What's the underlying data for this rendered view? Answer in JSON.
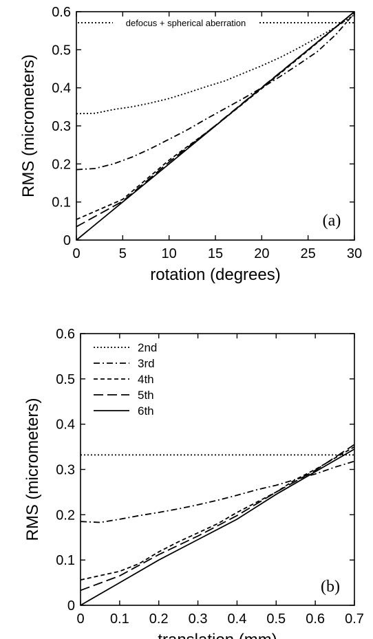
{
  "styles": {
    "2nd": "2,3",
    "3rd": "9,4,2,4",
    "4th": "6,4",
    "5th": "14,6",
    "6th": "",
    "defocus": "2,3"
  },
  "legend": [
    "2nd",
    "3rd",
    "4th",
    "5th",
    "6th"
  ],
  "chart_data": [
    {
      "type": "line",
      "panel_label": "(a)",
      "xlabel": "rotation (degrees)",
      "ylabel": "RMS (micrometers)",
      "xlim": [
        0,
        30
      ],
      "ylim": [
        0,
        0.6
      ],
      "xticks": [
        0,
        5,
        10,
        15,
        20,
        25,
        30
      ],
      "yticks": [
        0,
        0.1,
        0.2,
        0.3,
        0.4,
        0.5,
        0.6
      ],
      "xtick_labels": [
        "0",
        "5",
        "10",
        "15",
        "20",
        "25",
        "30"
      ],
      "ytick_labels": [
        "0",
        "0.1",
        "0.2",
        "0.3",
        "0.4",
        "0.5",
        "0.6"
      ],
      "series": [
        {
          "name": "2nd",
          "x": [
            0,
            2,
            4,
            6,
            8,
            10,
            12,
            14,
            16,
            18,
            20,
            22,
            24,
            26,
            28,
            30
          ],
          "y": [
            0.332,
            0.333,
            0.343,
            0.35,
            0.36,
            0.372,
            0.387,
            0.403,
            0.418,
            0.438,
            0.458,
            0.48,
            0.505,
            0.532,
            0.56,
            0.592
          ]
        },
        {
          "name": "3rd",
          "x": [
            0,
            2,
            4,
            6,
            8,
            10,
            12,
            14,
            16,
            18,
            20,
            22,
            24,
            26,
            28,
            30
          ],
          "y": [
            0.185,
            0.188,
            0.2,
            0.218,
            0.24,
            0.265,
            0.29,
            0.318,
            0.345,
            0.372,
            0.4,
            0.43,
            0.462,
            0.495,
            0.54,
            0.596
          ]
        },
        {
          "name": "4th",
          "x": [
            0,
            5,
            10,
            15,
            20,
            25,
            30
          ],
          "y": [
            0.054,
            0.107,
            0.21,
            0.3,
            0.398,
            0.498,
            0.6
          ]
        },
        {
          "name": "5th",
          "x": [
            0,
            5,
            10,
            15,
            20,
            25,
            30
          ],
          "y": [
            0.035,
            0.102,
            0.205,
            0.301,
            0.401,
            0.5,
            0.6
          ]
        },
        {
          "name": "6th",
          "x": [
            0,
            5,
            10,
            15,
            20,
            25,
            30
          ],
          "y": [
            0.0,
            0.1,
            0.2,
            0.3,
            0.4,
            0.5,
            0.6
          ]
        }
      ],
      "annotation": {
        "text": "defocus + spherical aberration",
        "y": 0.571,
        "x_range": [
          0,
          30
        ]
      }
    },
    {
      "type": "line",
      "panel_label": "(b)",
      "xlabel": "translation (mm)",
      "ylabel": "RMS (micrometers)",
      "xlim": [
        0,
        0.7
      ],
      "ylim": [
        0,
        0.6
      ],
      "xticks": [
        0,
        0.1,
        0.2,
        0.3,
        0.4,
        0.5,
        0.6,
        0.7
      ],
      "yticks": [
        0,
        0.1,
        0.2,
        0.3,
        0.4,
        0.5,
        0.6
      ],
      "xtick_labels": [
        "0",
        "0.1",
        "0.2",
        "0.3",
        "0.4",
        "0.5",
        "0.6",
        "0.7"
      ],
      "ytick_labels": [
        "0",
        "0.1",
        "0.2",
        "0.3",
        "0.4",
        "0.5",
        "0.6"
      ],
      "series": [
        {
          "name": "2nd",
          "x": [
            0,
            0.7
          ],
          "y": [
            0.332,
            0.332
          ]
        },
        {
          "name": "3rd",
          "x": [
            0,
            0.05,
            0.1,
            0.15,
            0.2,
            0.25,
            0.3,
            0.35,
            0.4,
            0.45,
            0.5,
            0.55,
            0.6,
            0.65,
            0.7
          ],
          "y": [
            0.185,
            0.183,
            0.19,
            0.198,
            0.205,
            0.213,
            0.222,
            0.232,
            0.243,
            0.255,
            0.265,
            0.278,
            0.29,
            0.305,
            0.318
          ]
        },
        {
          "name": "4th",
          "x": [
            0,
            0.1,
            0.15,
            0.2,
            0.25,
            0.3,
            0.35,
            0.4,
            0.5,
            0.55,
            0.6,
            0.7
          ],
          "y": [
            0.056,
            0.075,
            0.092,
            0.118,
            0.14,
            0.16,
            0.18,
            0.205,
            0.25,
            0.278,
            0.3,
            0.35
          ]
        },
        {
          "name": "5th",
          "x": [
            0,
            0.1,
            0.2,
            0.3,
            0.4,
            0.5,
            0.6,
            0.7
          ],
          "y": [
            0.033,
            0.065,
            0.112,
            0.153,
            0.198,
            0.25,
            0.298,
            0.355
          ]
        },
        {
          "name": "6th",
          "x": [
            0,
            0.1,
            0.2,
            0.3,
            0.4,
            0.5,
            0.6,
            0.7
          ],
          "y": [
            0.0,
            0.05,
            0.1,
            0.145,
            0.19,
            0.245,
            0.295,
            0.345
          ]
        }
      ]
    }
  ]
}
